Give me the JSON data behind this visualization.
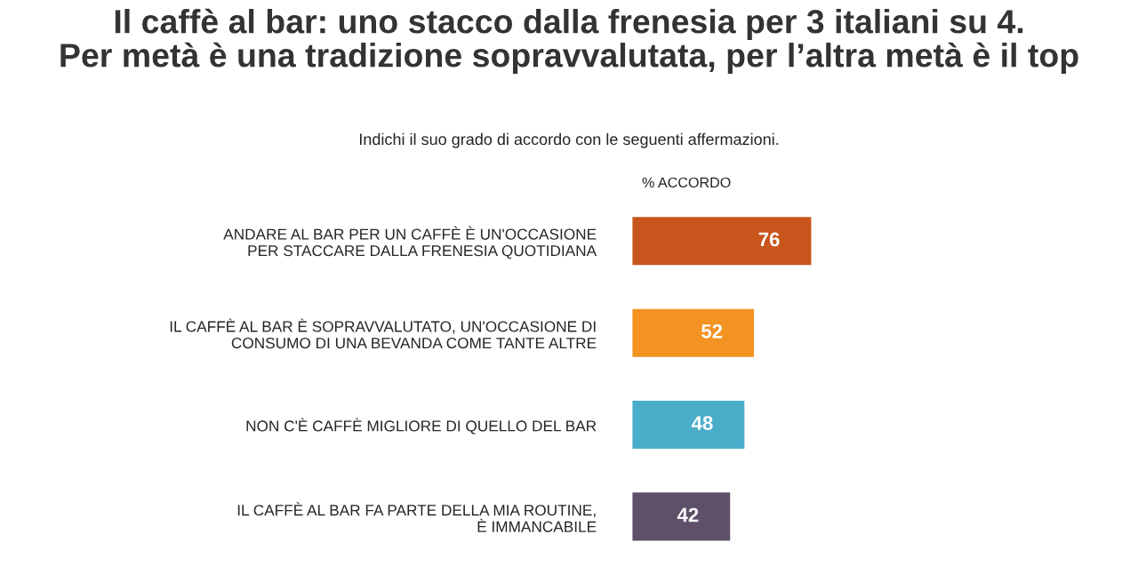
{
  "chart_data": {
    "type": "bar",
    "orientation": "horizontal",
    "title": "Il caffè al bar: uno stacco dalla frenesia per 3 italiani su 4.\nPer metà è una tradizione sopravvalutata, per l’altra metà è il top",
    "subtitle": "Indichi il suo grado di accordo con le seguenti affermazioni.",
    "annotations": [
      "% ACCORDO"
    ],
    "categories": [
      "ANDARE AL BAR PER UN CAFFÈ È UN'OCCASIONE\nPER STACCARE DALLA FRENESIA QUOTIDIANA",
      "IL CAFFÈ AL BAR È SOPRAVVALUTATO, UN'OCCASIONE DI\nCONSUMO DI UNA BEVANDA COME TANTE ALTRE",
      "NON C'È CAFFÈ MIGLIORE DI QUELLO DEL BAR",
      "IL CAFFÈ AL BAR FA PARTE DELLA MIA ROUTINE,\nÈ IMMANCABILE"
    ],
    "values": [
      76,
      52,
      48,
      42
    ],
    "colors": [
      "#c8561c",
      "#f39322",
      "#4aadca",
      "#5e5068"
    ],
    "data_labels": true,
    "grid": false
  }
}
